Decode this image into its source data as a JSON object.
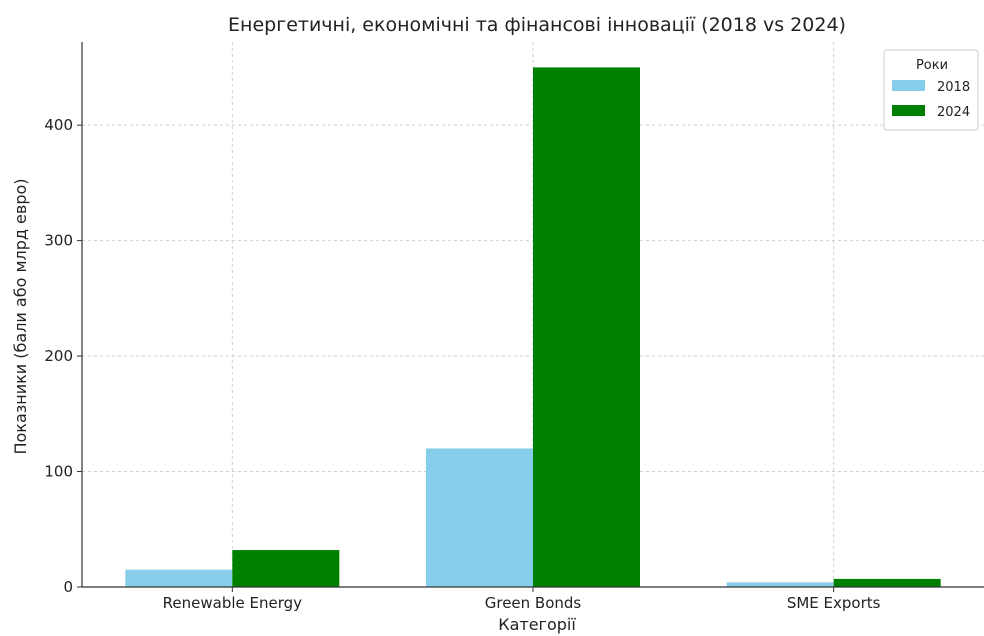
{
  "chart_data": {
    "type": "bar",
    "title": "Енергетичні, економічні та фінансові інновації (2018 vs 2024)",
    "xlabel": "Категорії",
    "ylabel": "Показники (бали або млрд евро)",
    "categories": [
      "Renewable Energy",
      "Green Bonds",
      "SME Exports"
    ],
    "series": [
      {
        "name": "2018",
        "values": [
          15,
          120,
          4
        ],
        "color": "#87ceeb"
      },
      {
        "name": "2024",
        "values": [
          32,
          450,
          7
        ],
        "color": "#008000"
      }
    ],
    "ylim": [
      0,
      472
    ],
    "yticks": [
      0,
      100,
      200,
      300,
      400
    ],
    "grid": true,
    "legend": {
      "title": "Роки",
      "placement": "top-right"
    }
  }
}
